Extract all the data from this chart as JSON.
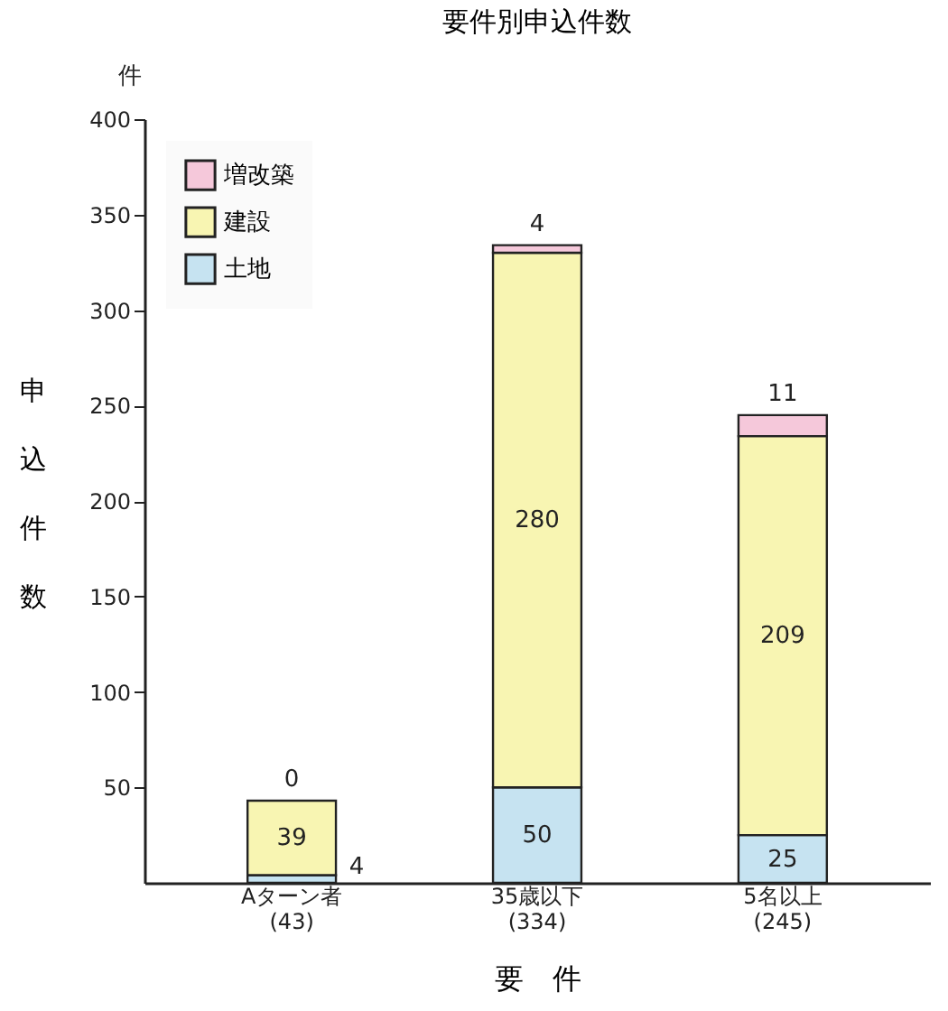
{
  "chart_data": {
    "type": "bar",
    "stacked": true,
    "title": "要件別申込件数",
    "xlabel": "要　件",
    "ylabel": "申込件数",
    "annotations": [
      "件"
    ],
    "categories": [
      "Aターン者\n(43)",
      "35歳以下\n(334)",
      "5名以上\n(245)"
    ],
    "series": [
      {
        "name": "土地",
        "color": "#c6e3f1",
        "values": [
          4,
          50,
          25
        ]
      },
      {
        "name": "建設",
        "color": "#f8f5b2",
        "values": [
          39,
          280,
          209
        ]
      },
      {
        "name": "増改築",
        "color": "#f5c8da",
        "values": [
          0,
          4,
          11
        ]
      }
    ],
    "ylim": [
      0,
      400
    ],
    "yticks": [
      50,
      100,
      150,
      200,
      250,
      300,
      350,
      400
    ],
    "data_labels": true,
    "legend": "top left",
    "grid": false
  }
}
